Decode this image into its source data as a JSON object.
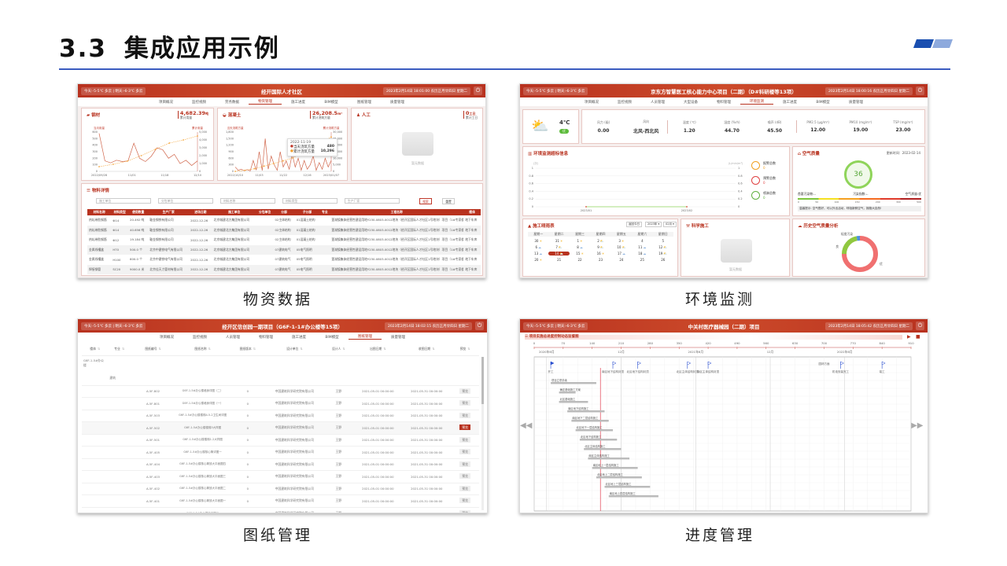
{
  "slide": {
    "number": "3.3",
    "title": "集成应用示例",
    "accent": "#1a4fb0",
    "accent_light": "#8eaadd",
    "captions": [
      "物资数据",
      "环境监测",
      "图纸管理",
      "进度管理"
    ]
  },
  "header_color": "#c0392b",
  "p1": {
    "weather": "今天:-5-5℃ 多云 | 明天:-6-3℃ 多云",
    "title": "经开国际人才社区",
    "datetime": "2023年2月14日 18:01:00 农历正月廿四日 星期二",
    "nav": [
      "项目概况",
      "监控视频",
      "劳务数据",
      "物资管理",
      "施工进度",
      "BIM模型",
      "图纸管理",
      "质量管理"
    ],
    "nav_active": 3,
    "steel": {
      "title": "钢材",
      "value": "4,682.39",
      "unit": "吨",
      "sub": "累计用量",
      "yleft": "当月用量",
      "yright": "累计用量",
      "yl_ticks": [
        "600",
        "500",
        "400",
        "300",
        "200",
        "100",
        "0"
      ],
      "yr_ticks": [
        "5,000",
        "4,000",
        "3,000",
        "2,000",
        "1,000",
        "0"
      ],
      "x_ticks": [
        "2022/09/28",
        "11/01",
        "11/18",
        "12/10"
      ],
      "series": [
        580,
        160,
        130,
        170,
        150,
        160,
        430,
        200,
        150,
        230,
        360,
        330,
        200,
        260,
        120,
        170,
        90,
        160
      ],
      "cumulative": [
        600,
        900,
        1300,
        2000,
        2800,
        3600,
        4000,
        4500
      ]
    },
    "concrete": {
      "title": "混凝土",
      "value": "26,208.5",
      "unit": "m³",
      "sub": "累计浇筑方量",
      "yleft": "当天浇筑方量",
      "yright": "累计浇筑方量",
      "yl_ticks": [
        "1,800",
        "1,500",
        "1,200",
        "900",
        "600",
        "300",
        "0"
      ],
      "yr_ticks": [
        "30,000",
        "25,000",
        "20,000",
        "15,000",
        "10,000",
        "5,000",
        "0"
      ],
      "x_ticks": [
        "2022/10/10",
        "11/03",
        "11/22",
        "12/16",
        "2023/01/07"
      ],
      "tooltip": {
        "date": "2022-11-19",
        "rows": [
          {
            "label": "当天浇筑方量",
            "value": "480"
          },
          {
            "label": "累计浇筑方量",
            "value": "10,296"
          }
        ]
      },
      "series": [
        200,
        50,
        100,
        30,
        80,
        20,
        500,
        60,
        900,
        40,
        1500,
        100,
        700,
        300,
        50,
        900,
        200,
        480,
        100,
        800,
        200,
        600,
        50,
        500,
        100,
        300,
        700,
        50,
        400,
        100,
        600,
        200,
        500
      ],
      "cumulative": [
        0,
        800,
        2000,
        4000,
        6000,
        8000,
        10296,
        14000,
        18000,
        22000,
        26208
      ]
    },
    "labor": {
      "title": "人工",
      "value": "0",
      "unit": "工日",
      "sub": "累计工日",
      "empty": "暂无数据"
    },
    "detail": {
      "title": "物料详情",
      "filters": [
        "施工单位",
        "分包单位",
        "材料名称",
        "材料类型",
        "生产厂家"
      ],
      "search": "搜索",
      "reset": "重置",
      "columns": [
        "材料名称",
        "材料类型",
        "使用数量",
        "生产厂家",
        "进场日期",
        "施工单位",
        "分包单位",
        "分部",
        "子分部",
        "专业",
        "工程名称",
        "楼体"
      ],
      "rows": [
        [
          "热轧带肋钢筋",
          "Φ14",
          "20.492 吨",
          "鞍金钢铁有限公司",
          "2022-12-26",
          "北京城建北方集团有限公司",
          "",
          "02主体结构",
          "01混凝土结构",
          "",
          "蓬湖镇集体经营性建设用地Y230-0803-0012地块（经开区国际人才社区1号地块）项目（1#专家楼（住宅）等25项）",
          "地下车库"
        ],
        [
          "热轧带肋钢筋",
          "Φ14",
          "40.656 吨",
          "鞍金钢铁有限公司",
          "2022-12-26",
          "北京城建北方集团有限公司",
          "",
          "02主体结构",
          "01混凝土结构",
          "",
          "蓬湖镇集体经营性建设用地Y230-0803-0012地块（经开区国际人才社区1号地块）项目（1#专家楼（住宅）等25项）",
          "地下车库"
        ],
        [
          "热轧带肋钢筋",
          "Φ12",
          "19.184 吨",
          "鞍金钢铁有限公司",
          "2022-12-26",
          "北京城建北方集团有限公司",
          "",
          "02主体结构",
          "01混凝土结构",
          "",
          "蓬湖镇集体经营性建设用地Y230-0803-0012地块（经开区国际人才社区1号地块）项目（1#专家楼（住宅）等25项）",
          "地下车库"
        ],
        [
          "金属线槽盒",
          "H70",
          "500.0 个",
          "北京中建铁电气有限公司",
          "2022-12-26",
          "北京城建北方集团有限公司",
          "",
          "07建筑电气",
          "05电气照明",
          "",
          "蓬湖镇集体经营性建设用地Y230-0803-0012地块（经开区国际人才社区1号地块）项目（1#专家楼（住宅）等25项）",
          "地下车库"
        ],
        [
          "金属线槽盒",
          "H100",
          "600.0 个",
          "北京中建铁电气有限公司",
          "2022-12-26",
          "北京城建北方集团有限公司",
          "",
          "07建筑电气",
          "05电气照明",
          "",
          "蓬湖镇集体经营性建设用地Y230-0803-0012地块（经开区国际人才社区1号地块）项目（1#专家楼（住宅）等25项）",
          "地下车库"
        ],
        [
          "焊接钢管",
          "SC20",
          "9000.0 米",
          "北京佳天力管材有限公司",
          "2022-12-26",
          "北京城建北方集团有限公司",
          "",
          "07建筑电气",
          "05电气照明",
          "",
          "蓬湖镇集体经营性建设用地Y230-0803-0012地块（经开区国际人才社区1号地块）项目（1#专家楼（住宅）等25项）",
          "地下车库"
        ]
      ]
    }
  },
  "p2": {
    "weather": "今天:-5-5℃ 多云 | 明天:-6-3℃ 多云",
    "title": "京东方智慧医工核心能力中心项目（二期）（D#科研楼等13项）",
    "datetime": "2023年2月14日 18:00:16 农历正月廿四日 星期二",
    "nav": [
      "项目概况",
      "监控视频",
      "人员管理",
      "大型设备",
      "物料管理",
      "环境监测",
      "施工进度",
      "BIM模型",
      "质量管理"
    ],
    "nav_active": 5,
    "temp": "4℃",
    "aqi_badge": "优",
    "metrics": [
      {
        "label": "风力 (级)",
        "value": "0.00"
      },
      {
        "label": "风向",
        "value": "北风-西北风"
      },
      {
        "label": "温度 (℃)",
        "value": "1.20"
      },
      {
        "label": "湿度 (%rh)",
        "value": "44.70"
      },
      {
        "label": "噪声 (dB)",
        "value": "45.50"
      },
      {
        "label": "PM2.5 (μg/m³)",
        "value": "12.00"
      },
      {
        "label": "PM10 (mg/m³)",
        "value": "19.00"
      },
      {
        "label": "TSP (mg/m³)",
        "value": "23.00"
      }
    ],
    "exceed": {
      "title": "环境监测超标信息",
      "yl_unit": "(次)",
      "yr_unit": "(L/min/m³)",
      "ticks": [
        "1",
        "0.8",
        "0.6",
        "0.4",
        "0.2",
        "0"
      ],
      "x_ticks": [
        "2023/01",
        "2023/02"
      ],
      "stats": [
        {
          "label": "报警总数",
          "value": "0",
          "color": "#f0a020"
        },
        {
          "label": "预警总数",
          "value": "0",
          "color": "#e04040"
        },
        {
          "label": "喷淋总数",
          "value": "0",
          "color": "#60b040"
        }
      ]
    },
    "air": {
      "title": "空气质量",
      "updated": "更新时间：2023-02-14",
      "aqi": "36",
      "primary": "首要污染物:--",
      "index": "污染指数:--",
      "quality": "空气质量:优",
      "scale": [
        "0",
        "50",
        "100",
        "150",
        "200",
        "300",
        "500"
      ],
      "tip": "温馨提示: 空气很好，可以外出活动，呼吸新鲜空气，拥抱大自然!"
    },
    "calendar": {
      "title": "施工晴雨表",
      "today_btn": "返回今日",
      "year": "2023年",
      "month": "02月",
      "weekdays": [
        "星期一",
        "星期二",
        "星期三",
        "星期四",
        "星期五",
        "星期六",
        "星期日"
      ],
      "days": [
        [
          "30",
          "☀"
        ],
        [
          "31",
          "☀"
        ],
        [
          "1",
          "☀"
        ],
        [
          "2",
          "⛅"
        ],
        [
          "3",
          "☀"
        ],
        [
          "4",
          ""
        ],
        [
          "5",
          ""
        ],
        [
          "6",
          "☁"
        ],
        [
          "7",
          "⛅"
        ],
        [
          "8",
          "☁"
        ],
        [
          "9",
          "⛅"
        ],
        [
          "10",
          "⛅"
        ],
        [
          "11",
          "☁"
        ],
        [
          "12",
          "⛅"
        ],
        [
          "13",
          "☁"
        ],
        [
          "14",
          "⛅"
        ],
        [
          "15",
          "☀"
        ],
        [
          "16",
          "☀"
        ],
        [
          "17",
          "☁"
        ],
        [
          "18",
          "☁"
        ],
        [
          "19",
          "⛅"
        ],
        [
          "20",
          "☀"
        ],
        [
          "21",
          ""
        ],
        [
          "22",
          ""
        ],
        [
          "23",
          ""
        ],
        [
          "24",
          ""
        ],
        [
          "25",
          ""
        ],
        [
          "26",
          ""
        ]
      ],
      "today": "14"
    },
    "science": {
      "title": "科学施工",
      "empty": "暂无数据"
    },
    "history": {
      "title": "历史空气质量分析",
      "slices": [
        {
          "label": "优",
          "value": 75,
          "color": "#f07070"
        },
        {
          "label": "良",
          "value": 22,
          "color": "#90c840"
        },
        {
          "label": "轻度污染",
          "value": 3,
          "color": "#4a90e0"
        }
      ]
    }
  },
  "p3": {
    "weather": "今天:-5-5℃ 多云 | 明天:-6-3℃ 多云",
    "title": "经开区信创园一期项目（G6F-1-1#办公楼等15项）",
    "datetime": "2023年2月14日 18:02:15 农历正月廿四日 星期二",
    "nav": [
      "项目概况",
      "监控视频",
      "人员管理",
      "物料管理",
      "施工进度",
      "BIM模型",
      "图纸管理",
      "质量管理"
    ],
    "nav_active": 6,
    "columns": [
      "楼体",
      "专业",
      "图纸编号",
      "图纸名称",
      "图纸版本",
      "设计单位",
      "设计人",
      "出图日期",
      "收图日期",
      "预览"
    ],
    "tree_building": "G6F-1-5#办公楼",
    "tree_discipline": "建筑",
    "preview": "预览",
    "designer_org": "中国建筑科学研究院有限公司",
    "designer": "王野",
    "date_out": "2021-05-01 00:00:00",
    "date_in": "2021-05-31 00:00:00",
    "rows": [
      [
        "A-5F-802",
        "G6F-1-5#办公楼墙身详图（二）"
      ],
      [
        "A-5F-801",
        "G6F-1-5#办公楼墙身详图（一）"
      ],
      [
        "A-5F-503",
        "G6F-1-5#办公楼楼梯4-5-2卫生间详图"
      ],
      [
        "A-5F-502",
        "G6F-1-5#办公楼楼梯3大样图"
      ],
      [
        "A-5F-501",
        "G6F-1-5#办公楼楼梯1-2大样图"
      ],
      [
        "A-5F-405",
        "G6F-1-5#办公楼核心筒详图一"
      ],
      [
        "A-5F-404",
        "G6F-1-5#办公楼核心筒放大平面图四"
      ],
      [
        "A-5F-403",
        "G6F-1-5#办公楼核心筒放大平面图三"
      ],
      [
        "A-5F-402",
        "G6F-1-5#办公楼核心筒放大平面图二"
      ],
      [
        "A-5F-401",
        "G6F-1-5#办公楼核心筒放大平面图一"
      ],
      [
        "A-5F-302",
        "G6F-1-5#办公楼立面图二"
      ]
    ],
    "active_row": 3
  },
  "p4": {
    "weather": "今天:-5-5℃ 多云 | 明天:-6-3℃ 多云",
    "title": "中关村医疗器械园（二期）项目",
    "datetime": "2023年2月14日 18:05:42 农历正月廿四日 星期二",
    "section": "项目实施总进度控制动态监督图",
    "axis": [
      "0",
      "70",
      "140",
      "210",
      "280",
      "350",
      "420",
      "490",
      "560",
      "630",
      "700",
      "770",
      "840",
      "910"
    ],
    "months": [
      {
        "label": "2020年6月",
        "day": 30
      },
      {
        "label": "12月",
        "day": 210
      },
      {
        "label": "2021年6月",
        "day": 390
      },
      {
        "label": "12月",
        "day": 570
      },
      {
        "label": "2022年6月",
        "day": 750
      }
    ],
    "milestones": [
      {
        "label": "开工",
        "day": 40
      },
      {
        "label": "南区地下结构封顶",
        "day": 190
      },
      {
        "label": "北区地下结构封顶",
        "day": 250
      },
      {
        "label": "北区主体结构封顶",
        "day": 370
      },
      {
        "label": "南区主体结构封顶",
        "day": 420
      },
      {
        "label": "机电安装完工",
        "day": 740
      },
      {
        "label": "竣工",
        "day": 840
      }
    ],
    "side_note": "园林方面",
    "today_day": 160,
    "tasks": [
      {
        "label": "项目立项手续",
        "start": 40,
        "end": 150
      },
      {
        "label": "确定基础施工方案",
        "start": 60,
        "end": 100
      },
      {
        "label": "北区基础施工",
        "start": 60,
        "end": 130
      },
      {
        "label": "南区地下结构施工",
        "start": 80,
        "end": 170
      },
      {
        "label": "南区地下二层结构施工",
        "start": 90,
        "end": 180
      },
      {
        "label": "北区地下一层结构施工",
        "start": 100,
        "end": 190
      },
      {
        "label": "北区地下结构施工",
        "start": 110,
        "end": 200
      },
      {
        "label": "北区主体结构施工",
        "start": 120,
        "end": 210
      },
      {
        "label": "南区主体结构施工",
        "start": 130,
        "end": 230
      },
      {
        "label": "南区地上一层结构施工",
        "start": 140,
        "end": 250
      },
      {
        "label": "北区地上二层结构施工",
        "start": 150,
        "end": 260
      },
      {
        "label": "北区地上三层结构施工",
        "start": 170,
        "end": 280
      },
      {
        "label": "南区地上四层结构施工",
        "start": 180,
        "end": 300
      }
    ]
  }
}
